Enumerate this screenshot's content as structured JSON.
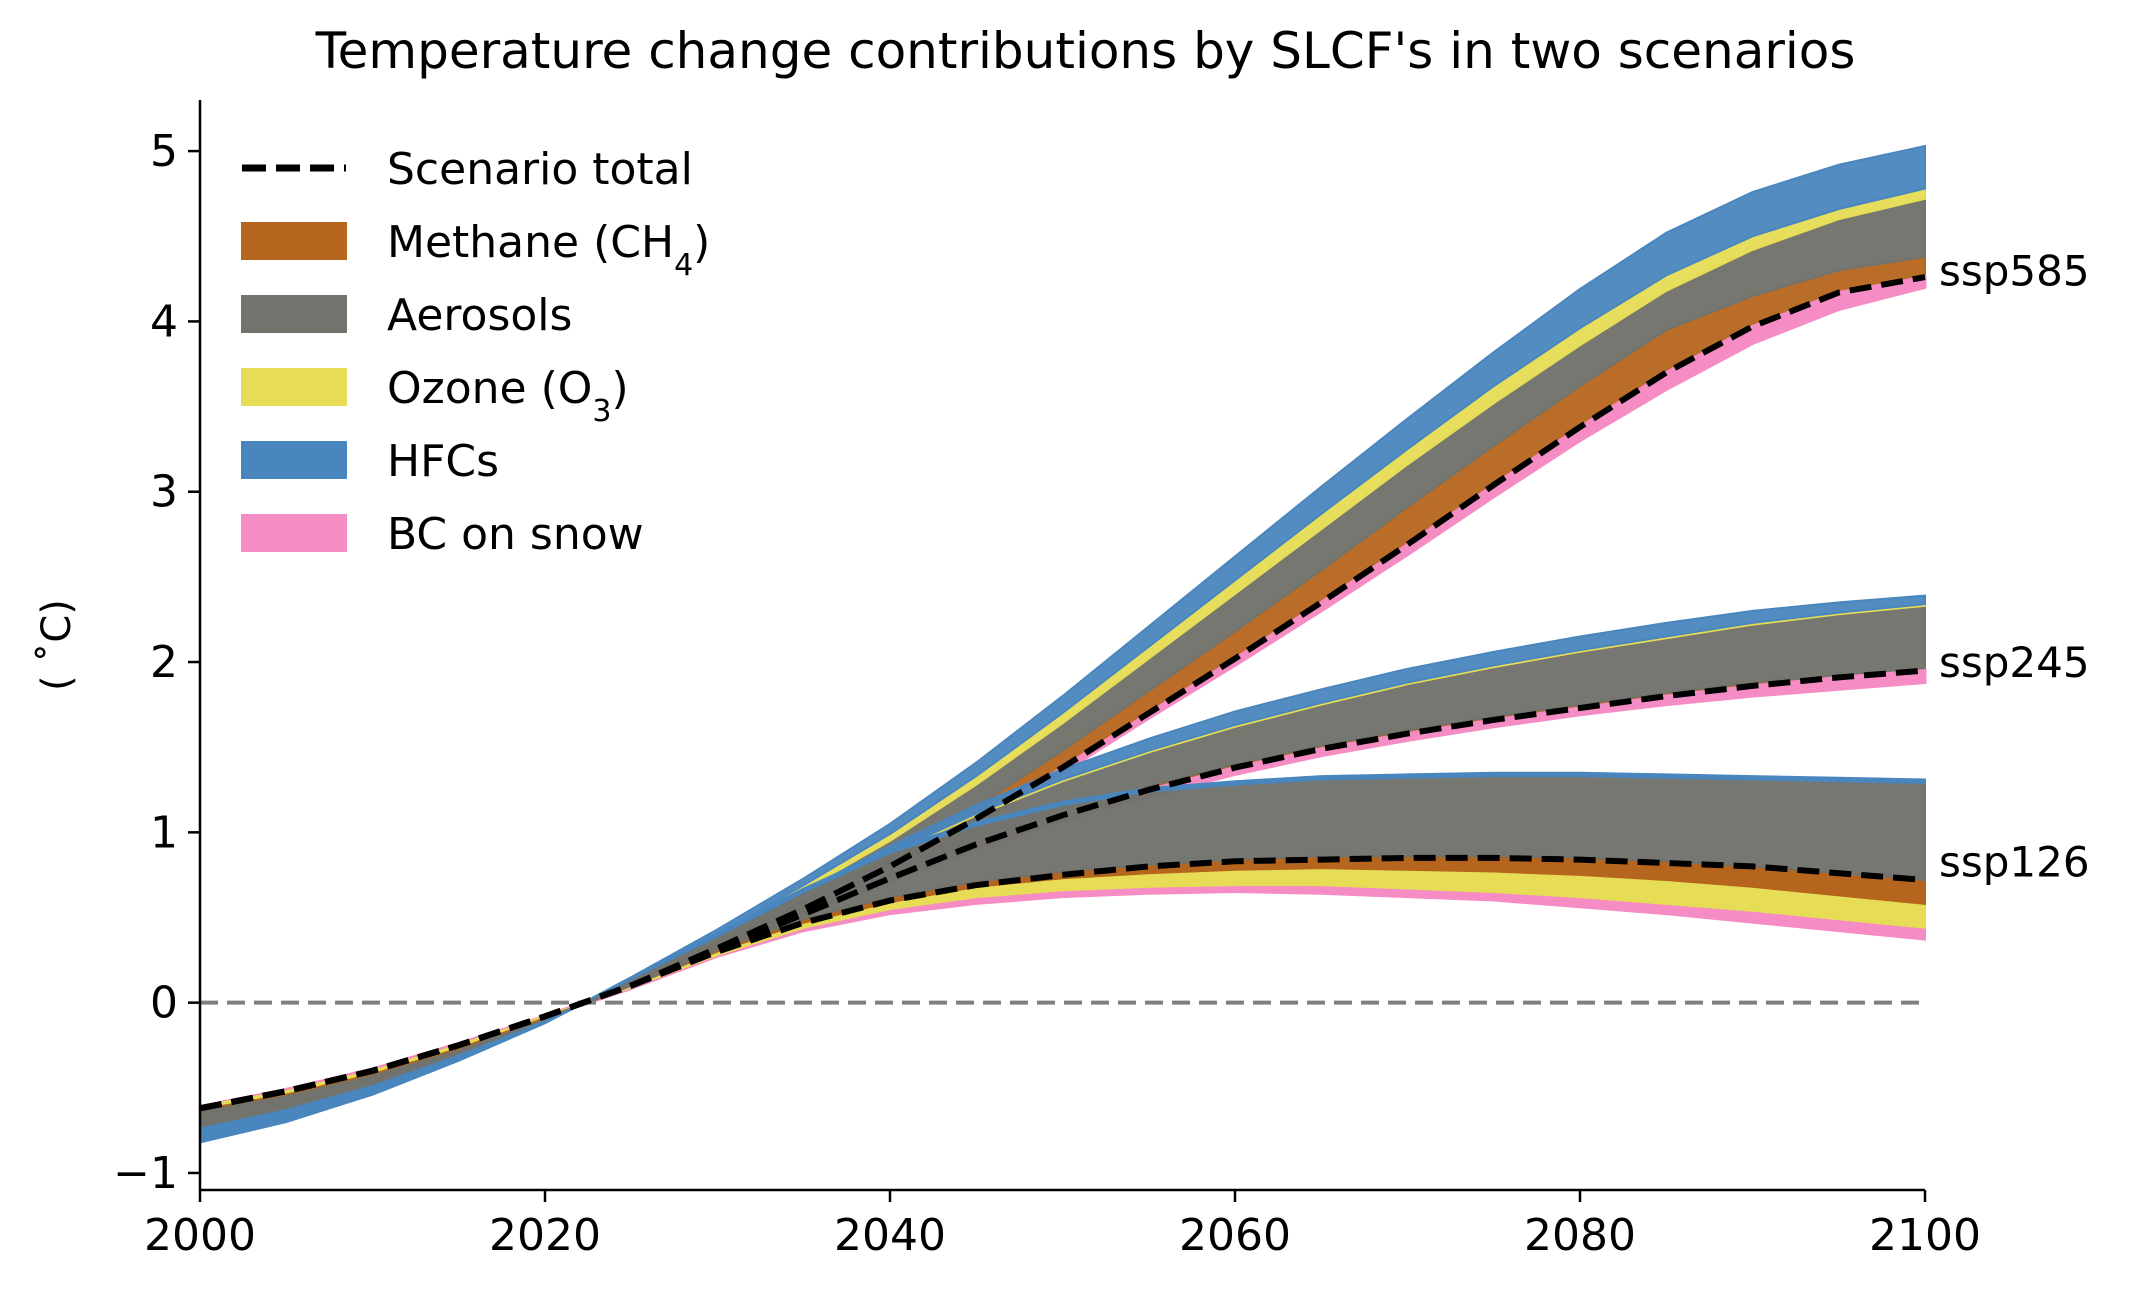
{
  "chart_data": {
    "type": "area",
    "title": "Temperature change contributions by SLCF's in two scenarios",
    "xlabel": "",
    "ylabel": "( ˚C)",
    "xlim": [
      2000,
      2100
    ],
    "ylim": [
      -1.1,
      5.3
    ],
    "xticks": [
      2000,
      2020,
      2040,
      2060,
      2080,
      2100
    ],
    "yticks": [
      -1,
      0,
      1,
      2,
      3,
      4,
      5
    ],
    "zero_line": true,
    "grid": false,
    "legend_position": "top-left",
    "legend": [
      {
        "label": "Scenario total",
        "kind": "dashed-line",
        "color": "#000000"
      },
      {
        "label": "Methane (CH",
        "sub": "4",
        "tail": ")",
        "kind": "patch",
        "color": "#b5651d"
      },
      {
        "label": "Aerosols",
        "kind": "patch",
        "color": "#72736c"
      },
      {
        "label": "Ozone (O",
        "sub": "3",
        "tail": ")",
        "kind": "patch",
        "color": "#e6dc55"
      },
      {
        "label": "HFCs",
        "kind": "patch",
        "color": "#4a86be"
      },
      {
        "label": "BC on snow",
        "kind": "patch",
        "color": "#f58cc4"
      }
    ],
    "colors": {
      "total": "#000000",
      "methane": "#b5651d",
      "aerosols": "#72736c",
      "ozone": "#e6dc55",
      "hfcs": "#4a86be",
      "bc_on_snow": "#f58cc4",
      "zero_line": "#808080"
    },
    "x": [
      2000,
      2005,
      2010,
      2015,
      2020,
      2025,
      2030,
      2035,
      2040,
      2045,
      2050,
      2055,
      2060,
      2065,
      2070,
      2075,
      2080,
      2085,
      2090,
      2095,
      2100
    ],
    "scenarios": [
      {
        "name": "ssp585",
        "total": [
          -0.62,
          -0.52,
          -0.4,
          -0.25,
          -0.08,
          0.1,
          0.32,
          0.55,
          0.8,
          1.08,
          1.38,
          1.7,
          2.02,
          2.35,
          2.69,
          3.04,
          3.38,
          3.7,
          3.97,
          4.17,
          4.26
        ],
        "layers": [
          {
            "name": "methane",
            "values": [
              -0.66,
              -0.56,
              -0.43,
              -0.27,
              -0.09,
              0.11,
              0.34,
              0.58,
              0.85,
              1.15,
              1.48,
              1.83,
              2.18,
              2.54,
              2.91,
              3.27,
              3.62,
              3.95,
              4.15,
              4.3,
              4.38
            ]
          },
          {
            "name": "aerosols",
            "values": [
              -0.74,
              -0.63,
              -0.49,
              -0.31,
              -0.11,
              0.13,
              0.38,
              0.66,
              0.95,
              1.28,
              1.64,
              2.02,
              2.4,
              2.78,
              3.16,
              3.52,
              3.86,
              4.18,
              4.42,
              4.6,
              4.72
            ]
          },
          {
            "name": "ozone",
            "values": [
              -0.78,
              -0.66,
              -0.51,
              -0.32,
              -0.11,
              0.14,
              0.4,
              0.69,
              0.99,
              1.33,
              1.7,
              2.09,
              2.48,
              2.87,
              3.25,
              3.62,
              3.96,
              4.27,
              4.5,
              4.66,
              4.78
            ]
          },
          {
            "name": "hfcs",
            "values": [
              -0.82,
              -0.7,
              -0.54,
              -0.34,
              -0.12,
              0.15,
              0.43,
              0.73,
              1.05,
              1.41,
              1.8,
              2.21,
              2.62,
              3.03,
              3.43,
              3.82,
              4.19,
              4.52,
              4.76,
              4.92,
              5.03
            ]
          }
        ],
        "bc_on_snow_top": [
          -0.61,
          -0.51,
          -0.39,
          -0.24,
          -0.08,
          0.09,
          0.31,
          0.53,
          0.78,
          1.05,
          1.35,
          1.67,
          1.98,
          2.3,
          2.63,
          2.97,
          3.3,
          3.6,
          3.87,
          4.07,
          4.2
        ]
      },
      {
        "name": "ssp245",
        "total": [
          -0.62,
          -0.52,
          -0.4,
          -0.25,
          -0.08,
          0.1,
          0.31,
          0.52,
          0.73,
          0.93,
          1.1,
          1.25,
          1.38,
          1.49,
          1.58,
          1.66,
          1.73,
          1.8,
          1.86,
          1.91,
          1.95
        ],
        "layers": [
          {
            "name": "methane",
            "values": [
              -0.66,
              -0.56,
              -0.43,
              -0.27,
              -0.09,
              0.11,
              0.32,
              0.54,
              0.75,
              0.95,
              1.12,
              1.27,
              1.4,
              1.51,
              1.6,
              1.68,
              1.75,
              1.82,
              1.88,
              1.92,
              1.96
            ]
          },
          {
            "name": "aerosols",
            "values": [
              -0.74,
              -0.63,
              -0.49,
              -0.31,
              -0.11,
              0.13,
              0.37,
              0.62,
              0.87,
              1.1,
              1.3,
              1.47,
              1.62,
              1.75,
              1.87,
              1.97,
              2.06,
              2.14,
              2.22,
              2.28,
              2.33
            ]
          },
          {
            "name": "ozone",
            "values": [
              -0.78,
              -0.66,
              -0.51,
              -0.32,
              -0.11,
              0.13,
              0.38,
              0.63,
              0.88,
              1.11,
              1.31,
              1.48,
              1.63,
              1.76,
              1.88,
              1.98,
              2.07,
              2.15,
              2.23,
              2.29,
              2.34
            ]
          },
          {
            "name": "hfcs",
            "values": [
              -0.82,
              -0.7,
              -0.54,
              -0.34,
              -0.12,
              0.14,
              0.4,
              0.66,
              0.92,
              1.16,
              1.37,
              1.55,
              1.71,
              1.84,
              1.96,
              2.06,
              2.15,
              2.23,
              2.3,
              2.35,
              2.39
            ]
          }
        ],
        "bc_on_snow_top": [
          -0.61,
          -0.51,
          -0.39,
          -0.24,
          -0.08,
          0.09,
          0.3,
          0.51,
          0.71,
          0.9,
          1.07,
          1.21,
          1.34,
          1.45,
          1.54,
          1.62,
          1.69,
          1.75,
          1.8,
          1.84,
          1.88
        ]
      },
      {
        "name": "ssp126",
        "total": [
          -0.62,
          -0.52,
          -0.4,
          -0.25,
          -0.08,
          0.1,
          0.3,
          0.47,
          0.6,
          0.69,
          0.75,
          0.8,
          0.83,
          0.84,
          0.85,
          0.85,
          0.84,
          0.82,
          0.8,
          0.76,
          0.72
        ]
      }
    ]
  },
  "ssp126_bands": {
    "bc_bottom": [
      -0.62,
      -0.53,
      -0.41,
      -0.26,
      -0.09,
      0.08,
      0.27,
      0.42,
      0.52,
      0.58,
      0.62,
      0.64,
      0.65,
      0.64,
      0.62,
      0.6,
      0.56,
      0.52,
      0.47,
      0.42,
      0.37
    ],
    "bc_top": [
      -0.61,
      -0.52,
      -0.4,
      -0.25,
      -0.08,
      0.09,
      0.28,
      0.44,
      0.55,
      0.62,
      0.66,
      0.68,
      0.69,
      0.69,
      0.67,
      0.65,
      0.62,
      0.58,
      0.54,
      0.49,
      0.44
    ],
    "ozone_top": [
      -0.63,
      -0.54,
      -0.42,
      -0.27,
      -0.09,
      0.1,
      0.3,
      0.47,
      0.59,
      0.68,
      0.73,
      0.76,
      0.78,
      0.79,
      0.78,
      0.77,
      0.75,
      0.72,
      0.68,
      0.63,
      0.58
    ],
    "methane_top": [
      -0.64,
      -0.55,
      -0.43,
      -0.28,
      -0.1,
      0.1,
      0.31,
      0.49,
      0.62,
      0.71,
      0.77,
      0.81,
      0.84,
      0.86,
      0.86,
      0.86,
      0.85,
      0.83,
      0.8,
      0.76,
      0.72
    ],
    "aerosol_top": [
      -0.74,
      -0.63,
      -0.49,
      -0.31,
      -0.11,
      0.14,
      0.39,
      0.65,
      0.88,
      1.04,
      1.16,
      1.24,
      1.28,
      1.31,
      1.32,
      1.33,
      1.33,
      1.32,
      1.31,
      1.3,
      1.29
    ],
    "hfc_top": [
      -0.82,
      -0.7,
      -0.54,
      -0.34,
      -0.12,
      0.15,
      0.41,
      0.67,
      0.9,
      1.06,
      1.18,
      1.26,
      1.3,
      1.33,
      1.34,
      1.35,
      1.35,
      1.34,
      1.33,
      1.32,
      1.31
    ]
  }
}
